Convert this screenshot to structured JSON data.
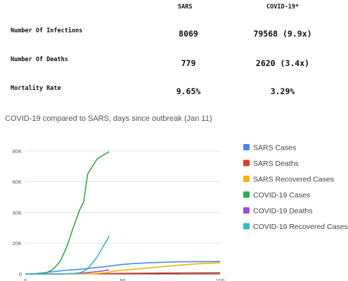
{
  "table": {
    "headers": {
      "sars": "SARS",
      "covid": "COVID-19*"
    },
    "rows": [
      {
        "label": "Number Of Infections",
        "sars": "8069",
        "covid": "79568 (9.9x)"
      },
      {
        "label": "Number Of Deaths",
        "sars": "779",
        "covid": "2620 (3.4x)"
      },
      {
        "label": "Mortality Rate",
        "sars": "9.65%",
        "covid": "3.29%"
      }
    ]
  },
  "chart_data": {
    "type": "line",
    "title": "COVID-19 compared to SARS, days since outbreak (Jan 11)",
    "xlabel": "",
    "ylabel": "",
    "xlim": [
      0,
      100
    ],
    "ylim": [
      0,
      85000
    ],
    "y_ticks": [
      0,
      20000,
      40000,
      60000,
      80000
    ],
    "y_tick_labels": [
      "0",
      "20K",
      "40K",
      "60K",
      "80K"
    ],
    "x_ticks": [
      0,
      50,
      100
    ],
    "x_tick_labels": [
      "0",
      "50",
      "100"
    ],
    "grid": true,
    "legend_position": "right",
    "series": [
      {
        "name": "SARS Cases",
        "color": "#4a86e8",
        "x": [
          0,
          5,
          10,
          15,
          20,
          25,
          30,
          35,
          40,
          45,
          50,
          55,
          60,
          65,
          70,
          75,
          80,
          85,
          90,
          95,
          100
        ],
        "y": [
          0,
          200,
          800,
          1600,
          2300,
          2800,
          3300,
          4000,
          4600,
          5500,
          6200,
          6700,
          7100,
          7400,
          7600,
          7800,
          7900,
          8000,
          8050,
          8060,
          8069
        ]
      },
      {
        "name": "SARS Deaths",
        "color": "#d93d2b",
        "x": [
          0,
          10,
          20,
          30,
          40,
          50,
          60,
          70,
          80,
          90,
          100
        ],
        "y": [
          0,
          30,
          90,
          150,
          250,
          380,
          500,
          600,
          680,
          740,
          779
        ]
      },
      {
        "name": "SARS Recovered Cases",
        "color": "#f4b400",
        "x": [
          0,
          25,
          35,
          42,
          45,
          50,
          55,
          60,
          65,
          70,
          75,
          80,
          85,
          90,
          95,
          100
        ],
        "y": [
          0,
          0,
          200,
          900,
          1800,
          2500,
          3000,
          3500,
          4100,
          4700,
          5300,
          5800,
          6300,
          6700,
          7000,
          7200
        ]
      },
      {
        "name": "COVID-19 Cases",
        "color": "#34a853",
        "x": [
          0,
          5,
          8,
          10,
          12,
          14,
          16,
          18,
          20,
          22,
          24,
          26,
          28,
          30,
          32,
          33,
          35,
          37,
          39,
          41,
          43
        ],
        "y": [
          0,
          100,
          200,
          400,
          1500,
          2800,
          5500,
          8500,
          14000,
          20000,
          28000,
          35000,
          42000,
          47000,
          65000,
          67000,
          71000,
          75000,
          76500,
          78000,
          79568
        ]
      },
      {
        "name": "COVID-19 Deaths",
        "color": "#9c4fcf",
        "x": [
          0,
          10,
          15,
          20,
          25,
          30,
          35,
          40,
          43
        ],
        "y": [
          0,
          10,
          30,
          80,
          300,
          700,
          1300,
          2000,
          2620
        ]
      },
      {
        "name": "COVID-19 Recovered Cases",
        "color": "#3db6c9",
        "x": [
          0,
          20,
          24,
          28,
          30,
          32,
          34,
          36,
          38,
          40,
          42,
          43
        ],
        "y": [
          0,
          0,
          200,
          800,
          1800,
          3300,
          6500,
          9500,
          13500,
          18000,
          22000,
          24990
        ]
      }
    ]
  }
}
